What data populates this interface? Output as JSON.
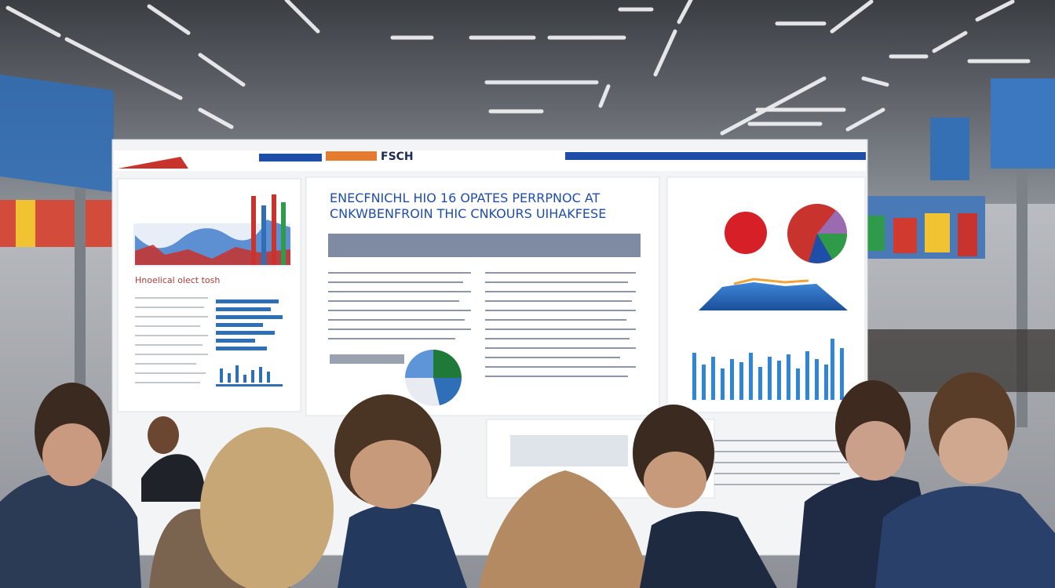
{
  "poster": {
    "header": "FSCH",
    "title_lines": [
      "ENECFNICHL HIO 16 OPATES PERRPNOC AT",
      "CNKWBENFROIN THIC CNKOURS UIHAKFESE"
    ],
    "left_caption": "Hnoelical olect tosh"
  }
}
